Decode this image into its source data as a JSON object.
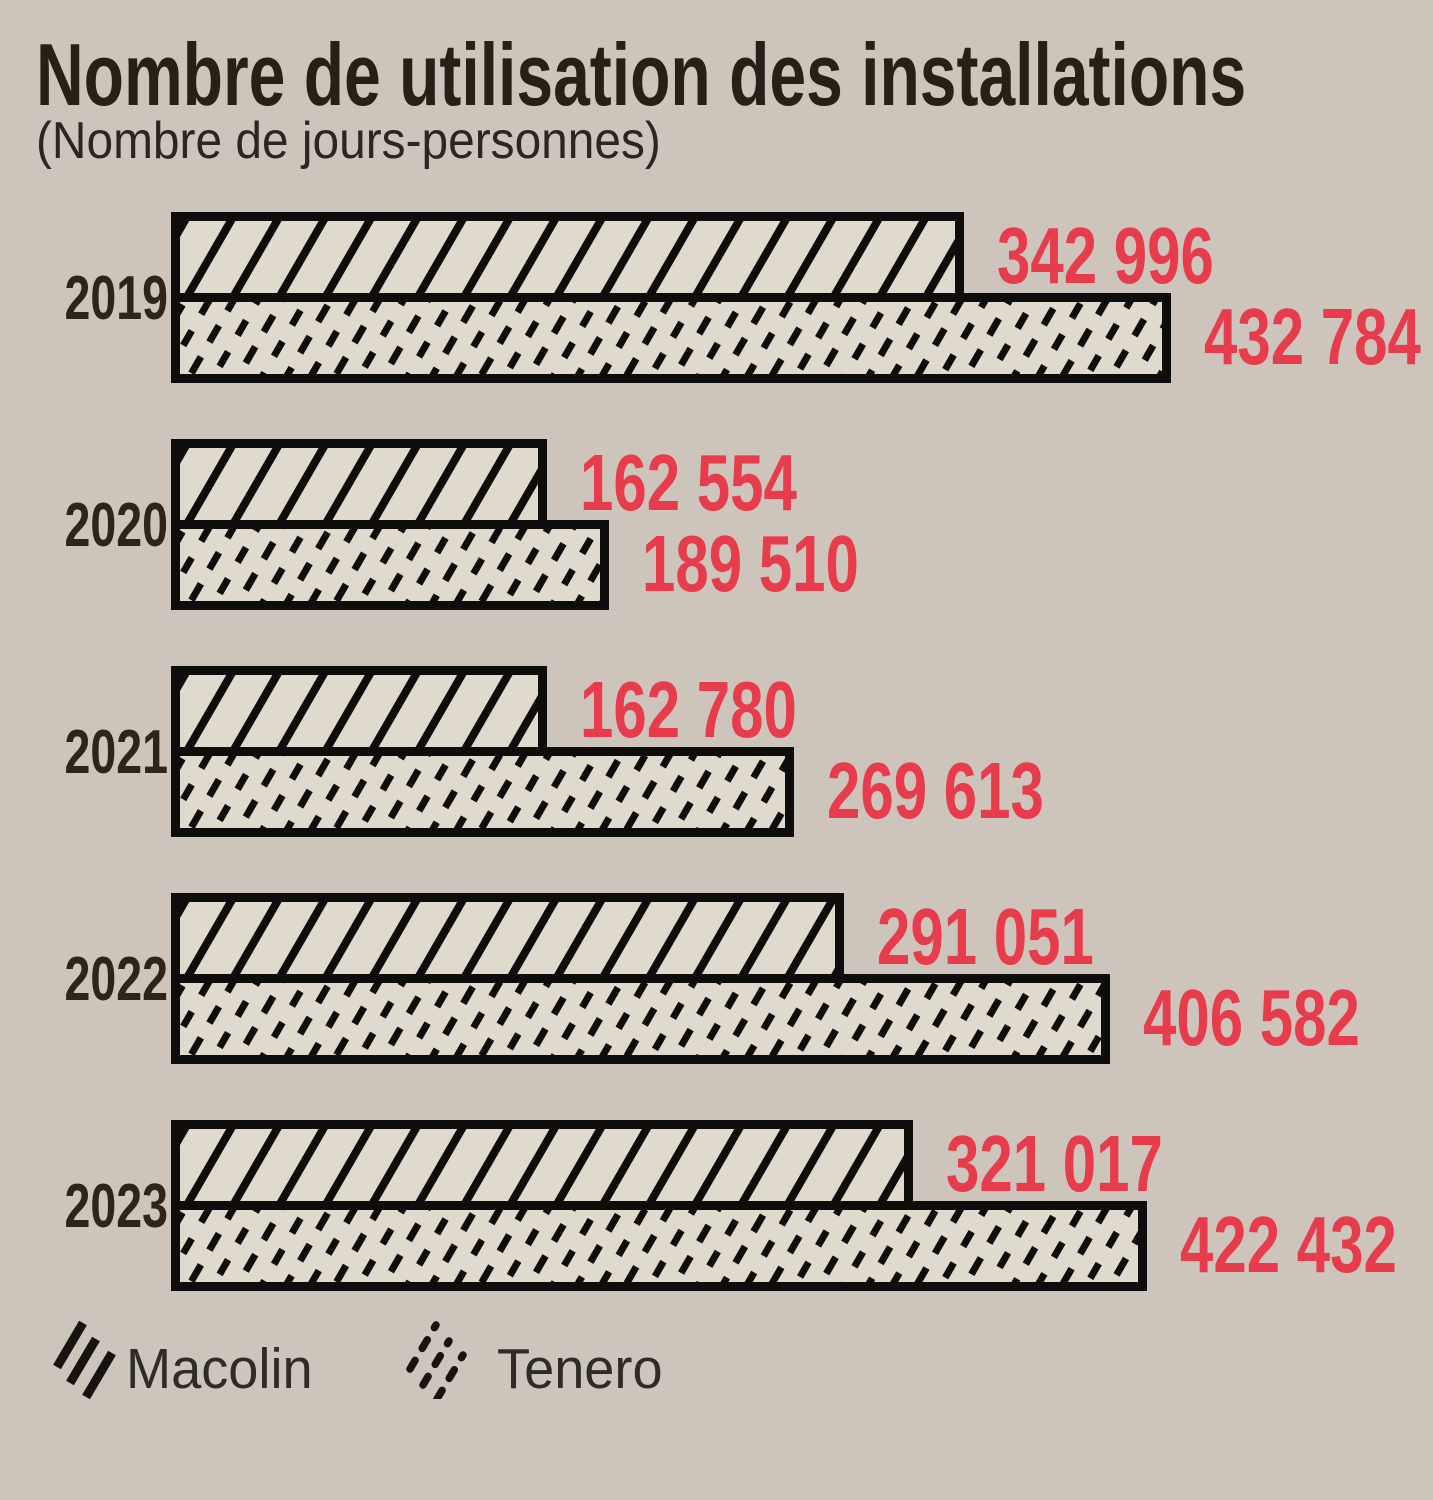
{
  "header": {
    "title": "Nombre de utilisation des installations",
    "subtitle": "(Nombre de jours-personnes)"
  },
  "colors": {
    "background": "#CDC5BB",
    "bar_fill": "#DFD9CE",
    "ink_black": "#0F0D0B",
    "value_red": "#E63C4C",
    "title_ink": "#281F17",
    "year_ink": "#2E2518",
    "legend_ink": "#2F2B25"
  },
  "legend": {
    "items": [
      {
        "label": "Macolin",
        "pattern": "diagonal-solid-hatch"
      },
      {
        "label": "Tenero",
        "pattern": "diagonal-dashed-hatch"
      }
    ]
  },
  "chart_data": {
    "type": "bar",
    "orientation": "horizontal",
    "title": "Nombre de utilisation des installations",
    "subtitle": "(Nombre de jours-personnes)",
    "unit": "jours-personnes",
    "categories": [
      "2019",
      "2020",
      "2021",
      "2022",
      "2023"
    ],
    "series": [
      {
        "name": "Macolin",
        "values": [
          342996,
          162554,
          162780,
          291051,
          321017
        ]
      },
      {
        "name": "Tenero",
        "values": [
          432784,
          189510,
          269613,
          406582,
          422432
        ]
      }
    ],
    "rows": [
      {
        "year": "2019",
        "macolin": 342996,
        "tenero": 432784,
        "macolin_label": "342 996",
        "tenero_label": "432 784"
      },
      {
        "year": "2020",
        "macolin": 162554,
        "tenero": 189510,
        "macolin_label": "162 554",
        "tenero_label": "189 510"
      },
      {
        "year": "2021",
        "macolin": 162780,
        "tenero": 269613,
        "macolin_label": "162 780",
        "tenero_label": "269 613"
      },
      {
        "year": "2022",
        "macolin": 291051,
        "tenero": 406582,
        "macolin_label": "291 051",
        "tenero_label": "406 582"
      },
      {
        "year": "2023",
        "macolin": 321017,
        "tenero": 422432,
        "macolin_label": "321 017",
        "tenero_label": "422 432"
      }
    ],
    "xlim": [
      0,
      432784
    ],
    "grid": false,
    "legend_position": "bottom"
  }
}
